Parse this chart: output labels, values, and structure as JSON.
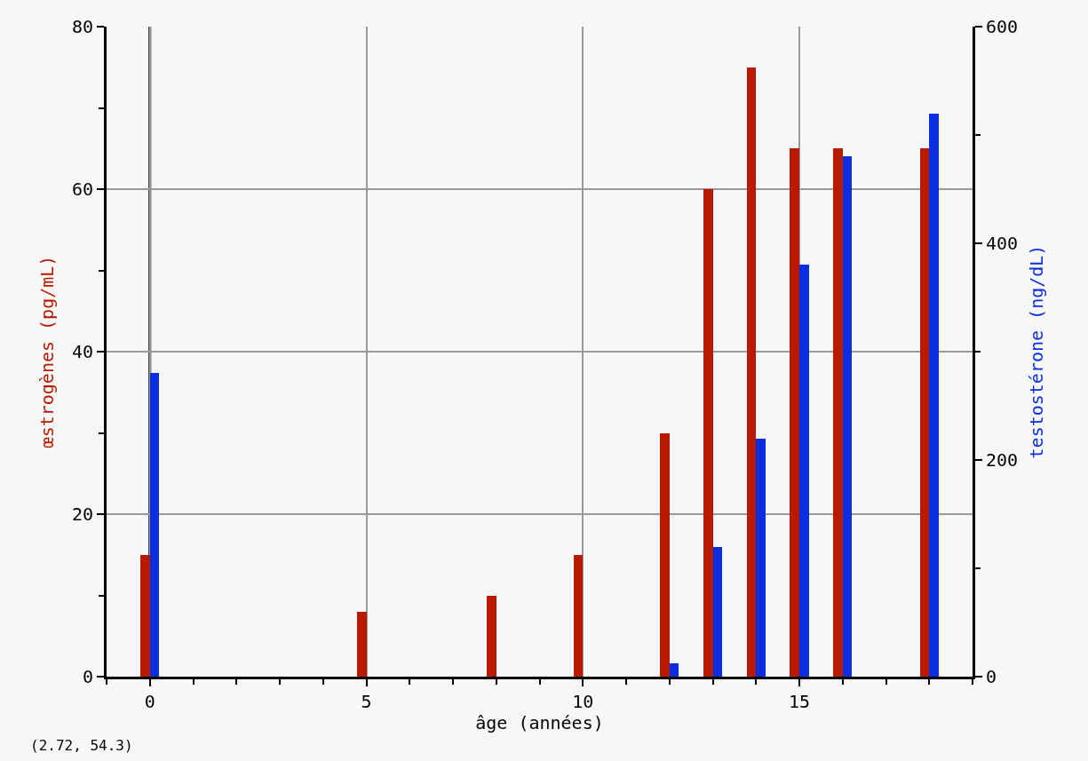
{
  "chart_data": {
    "type": "bar",
    "x": [
      0,
      5,
      8,
      10,
      12,
      13,
      14,
      15,
      16,
      18
    ],
    "series": [
      {
        "name": null,
        "color": "#b81a00",
        "values": [
          15,
          8,
          10,
          15,
          30,
          60,
          75,
          65,
          65,
          65
        ]
      },
      {
        "name": null,
        "color": "#0a2ee0",
        "axis": "y2",
        "values": [
          280,
          null,
          null,
          null,
          12,
          120,
          220,
          380,
          480,
          520
        ]
      }
    ],
    "xlabel": "âge (années)",
    "ylabel": "œstrogènes (pg/mL)",
    "y2label": "testostérone (ng/dL)",
    "xlim": [
      -1,
      19
    ],
    "xticks": [
      {
        "value": -1,
        "label": null
      },
      0,
      {
        "value": 1,
        "label": null
      },
      {
        "value": 2,
        "label": null
      },
      {
        "value": 3,
        "label": null
      },
      {
        "value": 4,
        "label": null
      },
      5,
      {
        "value": 6,
        "label": null
      },
      {
        "value": 7,
        "label": null
      },
      {
        "value": 8,
        "label": null
      },
      {
        "value": 9,
        "label": null
      },
      10,
      {
        "value": 11,
        "label": null
      },
      {
        "value": 12,
        "label": null
      },
      {
        "value": 13,
        "label": null
      },
      {
        "value": 14,
        "label": null
      },
      15,
      {
        "value": 16,
        "label": null
      },
      {
        "value": 17,
        "label": null
      },
      {
        "value": 18,
        "label": null
      },
      {
        "value": 19,
        "label": null
      }
    ],
    "ylim": [
      0,
      80
    ],
    "yticks": [
      0,
      {
        "value": 10,
        "label": null
      },
      20,
      {
        "value": 30,
        "label": null
      },
      40,
      {
        "value": 50,
        "label": null
      },
      60,
      {
        "value": 70,
        "label": null
      },
      80
    ],
    "y2lim": [
      0,
      600
    ],
    "y2ticks": [
      0,
      {
        "value": 100,
        "label": null
      },
      200,
      {
        "value": 300,
        "label": null
      },
      400,
      {
        "value": 500,
        "label": null
      },
      600
    ],
    "ref_lines": [
      {
        "axis": "x",
        "value": 0,
        "color": "#000000",
        "line_style": "solid"
      }
    ],
    "annotations": [
      "(2.72, 54.3)"
    ],
    "grid": true
  }
}
